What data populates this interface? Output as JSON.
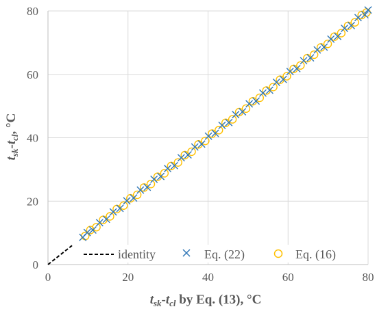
{
  "chart_data": {
    "type": "scatter",
    "title": "",
    "xlabel": {
      "base1": "t",
      "sub1": "sk",
      "dash": "-",
      "base2": "t",
      "sub2": "cl",
      "suffix": " by Eq. (13), °C"
    },
    "ylabel": {
      "base1": "t",
      "sub1": "sk",
      "dash": "-",
      "base2": "t",
      "sub2": "cl",
      "suffix": ", °C"
    },
    "xlim": [
      0,
      80
    ],
    "ylim": [
      0,
      80
    ],
    "xticks": [
      "0",
      "20",
      "40",
      "60",
      "80"
    ],
    "yticks": [
      "0",
      "20",
      "40",
      "60",
      "80"
    ],
    "grid": true,
    "legend_position": "bottom-inside",
    "series": [
      {
        "name": "identity",
        "marker": "dashed-line",
        "color": "#000000",
        "x": [
          0,
          6
        ],
        "y": [
          0,
          6
        ]
      },
      {
        "name": "Eq. (22)",
        "marker": "x",
        "color": "#2E75B6",
        "x": [
          8.7,
          9.8,
          11.2,
          12.9,
          14.6,
          16.3,
          18.0,
          19.7,
          21.4,
          23.1,
          24.8,
          26.5,
          28.2,
          29.9,
          31.6,
          33.3,
          35.0,
          36.7,
          38.4,
          40.1,
          41.8,
          43.5,
          45.2,
          46.9,
          48.6,
          50.3,
          52.0,
          53.7,
          55.4,
          57.1,
          58.8,
          60.5,
          62.2,
          63.9,
          65.6,
          67.3,
          69.0,
          70.7,
          72.4,
          74.1,
          75.8,
          77.5,
          79.2,
          80.0
        ],
        "y": [
          8.6,
          10.1,
          10.9,
          13.2,
          14.3,
          16.6,
          17.7,
          20.1,
          21.0,
          23.5,
          24.4,
          26.9,
          27.8,
          30.3,
          31.2,
          33.7,
          34.6,
          37.1,
          38.0,
          40.5,
          41.4,
          43.9,
          44.8,
          47.3,
          48.2,
          50.7,
          51.6,
          54.1,
          55.0,
          57.5,
          58.4,
          60.9,
          61.8,
          64.3,
          65.2,
          67.7,
          68.6,
          71.1,
          72.0,
          74.5,
          75.4,
          77.9,
          78.8,
          80.3
        ]
      },
      {
        "name": "Eq. (16)",
        "marker": "circle",
        "color": "#FFC000",
        "x": [
          9.3,
          10.6,
          12.1,
          13.8,
          15.5,
          17.2,
          18.9,
          20.6,
          22.3,
          24.0,
          25.7,
          27.4,
          29.1,
          30.8,
          32.5,
          34.2,
          35.9,
          37.6,
          39.3,
          41.0,
          42.7,
          44.4,
          46.1,
          47.8,
          49.5,
          51.2,
          52.9,
          54.6,
          56.3,
          58.0,
          59.7,
          61.4,
          63.1,
          64.8,
          66.5,
          68.2,
          69.9,
          71.6,
          73.3,
          75.0,
          76.7,
          78.4,
          79.6
        ],
        "y": [
          9.0,
          10.9,
          11.8,
          14.1,
          15.2,
          17.5,
          18.6,
          20.9,
          22.0,
          24.3,
          25.4,
          27.7,
          28.8,
          31.1,
          32.2,
          34.5,
          35.6,
          37.9,
          39.0,
          41.3,
          42.4,
          44.7,
          45.8,
          48.1,
          49.2,
          51.5,
          52.6,
          54.9,
          56.0,
          58.3,
          59.4,
          61.7,
          62.8,
          65.1,
          66.2,
          68.5,
          69.6,
          71.9,
          73.0,
          75.3,
          76.4,
          78.7,
          79.5
        ]
      }
    ]
  }
}
